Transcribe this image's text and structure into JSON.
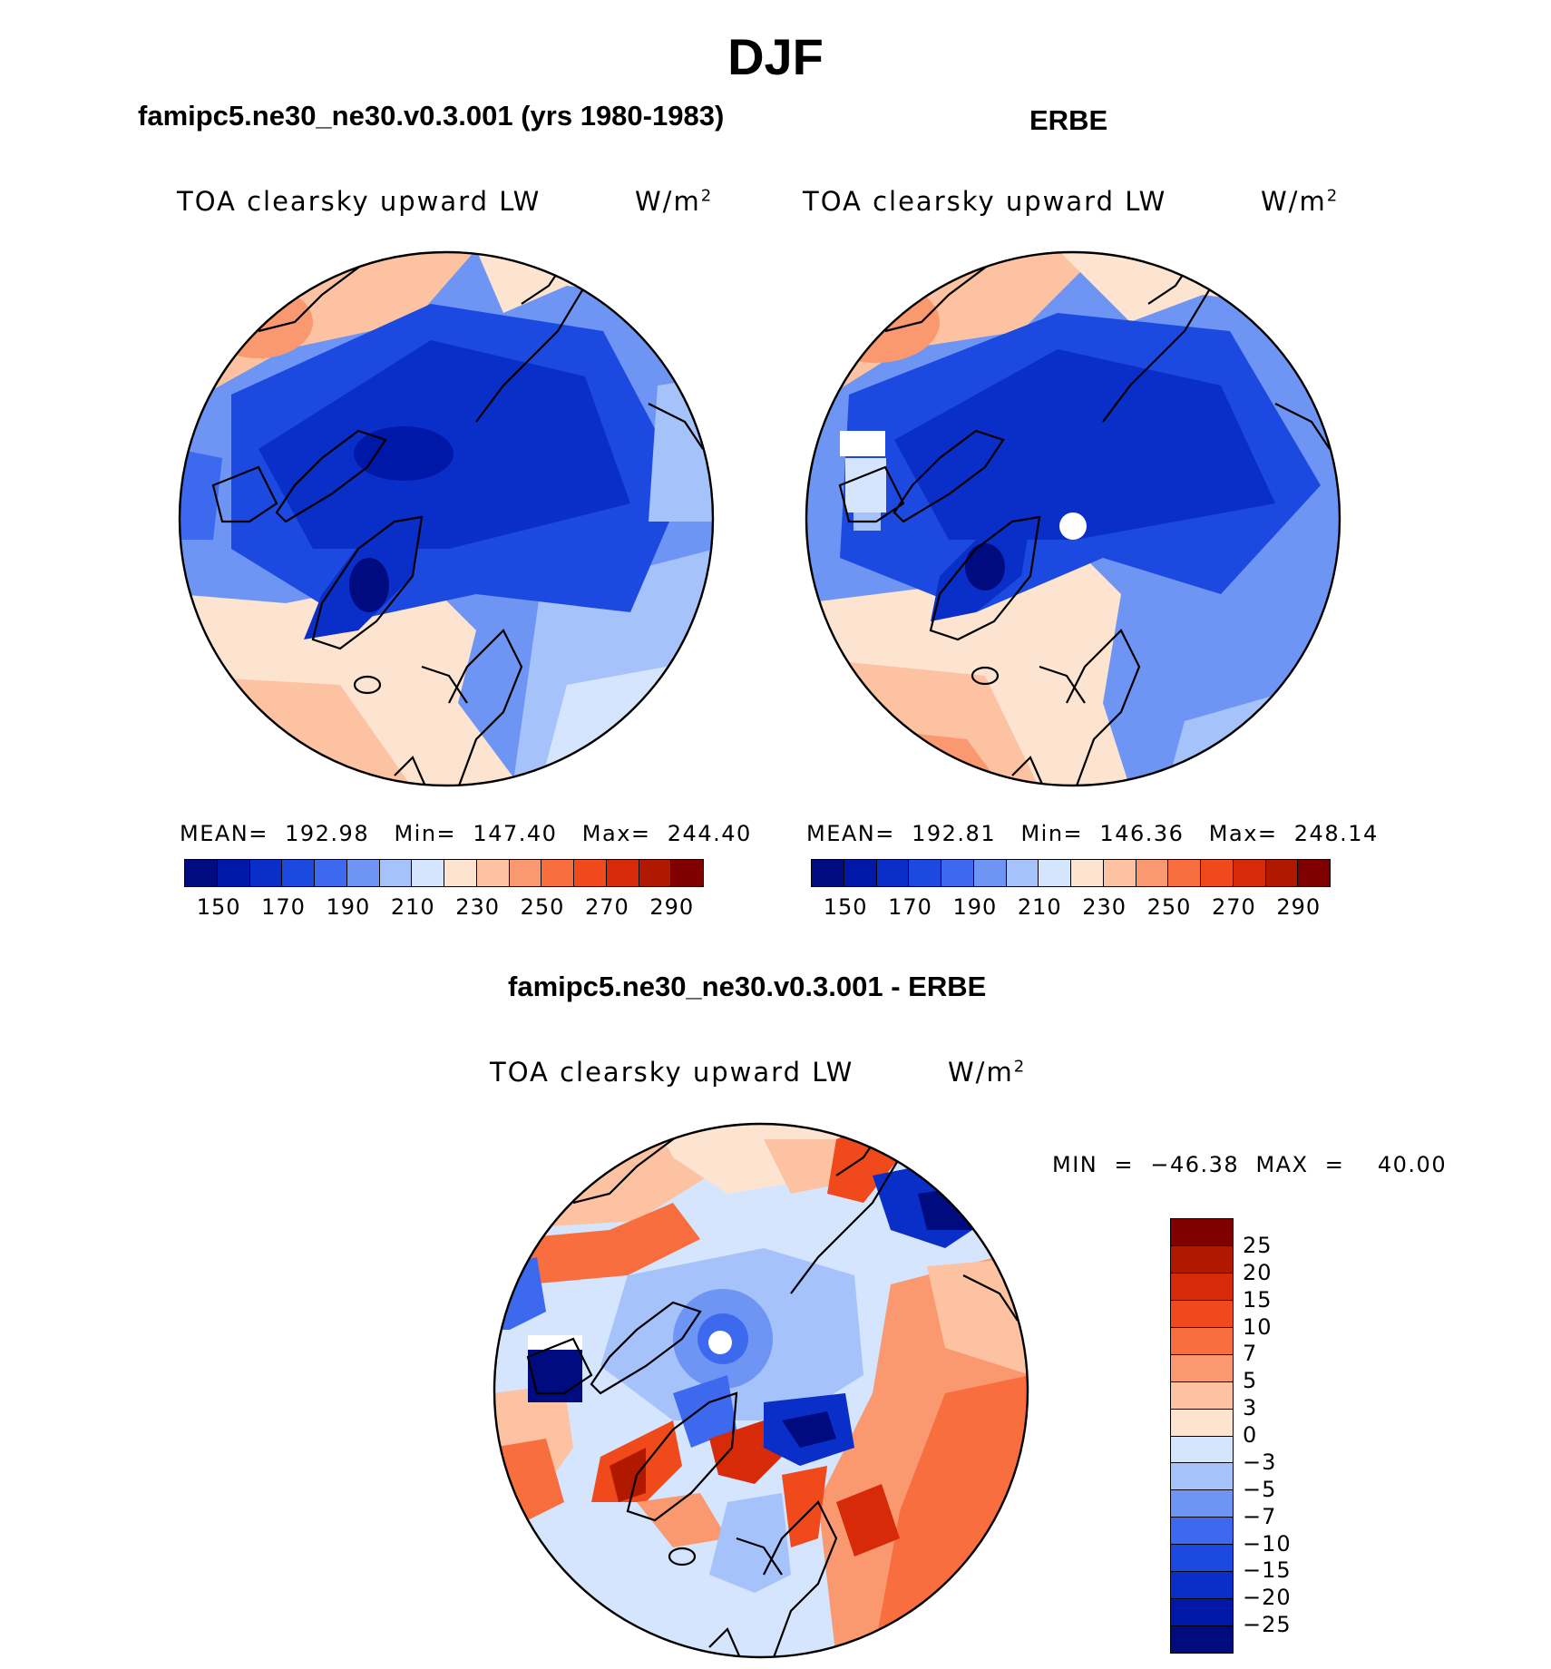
{
  "main_title": "DJF",
  "panels": [
    {
      "title": "famipc5.ne30_ne30.v0.3.001 (yrs 1980-1983)",
      "variable": "TOA clearsky upward LW",
      "units": "W/m",
      "units_exp": "2",
      "stats": "MEAN=  192.98   Min=  147.40   Max=  244.40"
    },
    {
      "title": "ERBE",
      "variable": "TOA clearsky upward LW",
      "units": "W/m",
      "units_exp": "2",
      "stats": "MEAN=  192.81   Min=  146.36   Max=  248.14"
    }
  ],
  "diff_panel": {
    "title": "famipc5.ne30_ne30.v0.3.001 - ERBE",
    "variable": "TOA clearsky upward LW",
    "units": "W/m",
    "units_exp": "2",
    "minmax": "MIN  =  −46.38  MAX  =    40.00"
  },
  "abs_colorbar": {
    "colors": [
      "#000b80",
      "#0018a8",
      "#0a2fc8",
      "#1c4ae0",
      "#3c69ee",
      "#6e95f4",
      "#a6c2fa",
      "#d4e5fd",
      "#fde4d0",
      "#fcc2a2",
      "#fa9870",
      "#f86e3e",
      "#f04a1c",
      "#d62a08",
      "#b01800",
      "#800000"
    ],
    "tick_labels": [
      "150",
      "170",
      "190",
      "210",
      "230",
      "250",
      "270",
      "290"
    ]
  },
  "diff_colorbar": {
    "colors": [
      "#800000",
      "#b01800",
      "#d62a08",
      "#f04a1c",
      "#f86e3e",
      "#fa9870",
      "#fcc2a2",
      "#fde4d0",
      "#d4e5fd",
      "#a6c2fa",
      "#6e95f4",
      "#3c69ee",
      "#1c4ae0",
      "#0a2fc8",
      "#0018a8",
      "#000b80"
    ],
    "tick_labels": [
      "25",
      "20",
      "15",
      "10",
      "7",
      "5",
      "3",
      "0",
      "−3",
      "−5",
      "−7",
      "−10",
      "−15",
      "−20",
      "−25"
    ]
  }
}
